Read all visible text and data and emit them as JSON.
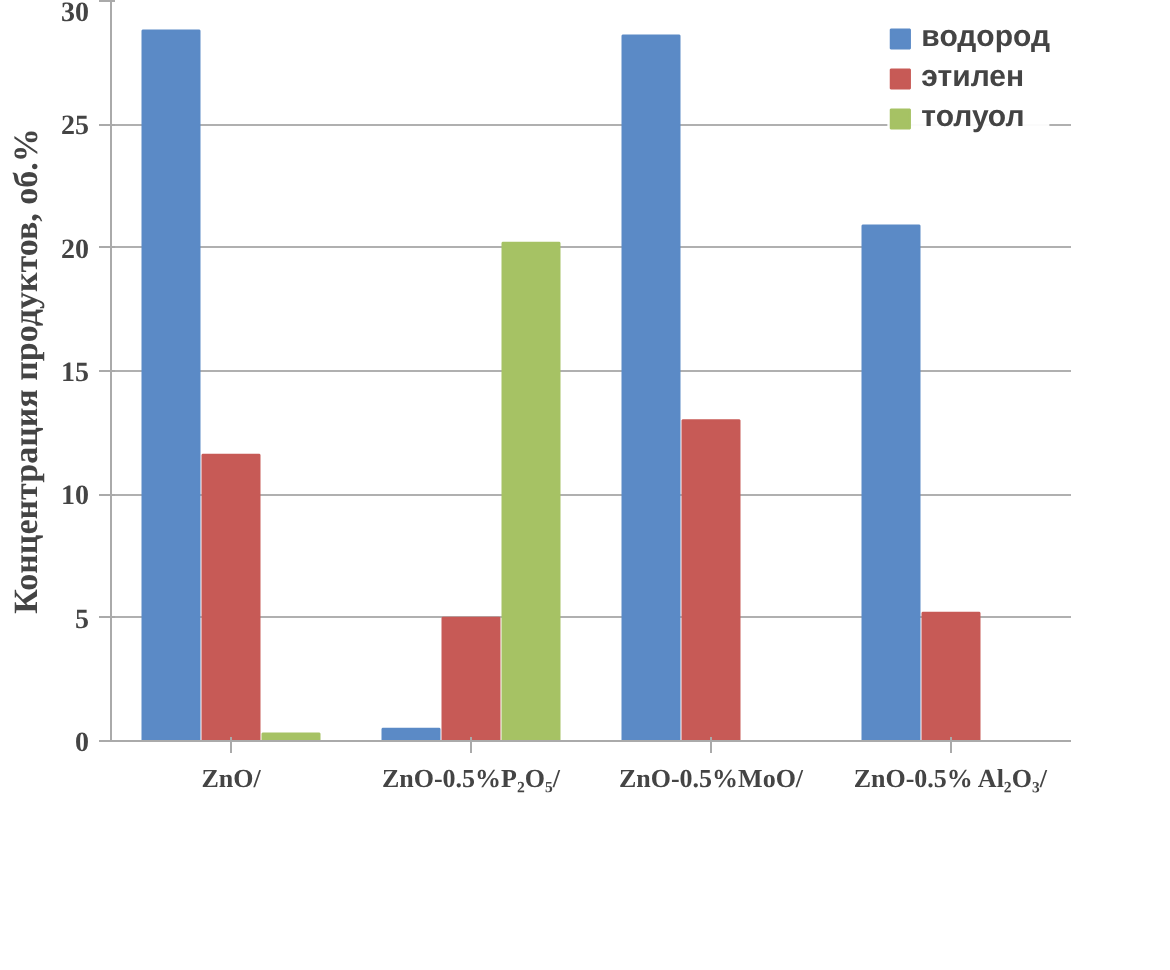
{
  "chart_data": {
    "type": "bar",
    "ylabel": "Концентрация продуктов, об.%",
    "categories": [
      "ZnO/",
      "ZnO-0.5%P₂O₅/",
      "ZnO-0.5%MoO/",
      "ZnO-0.5% Al₂O₃/"
    ],
    "series": [
      {
        "name": "водород",
        "color": "#5b8ac6",
        "values": [
          28.8,
          0.5,
          28.6,
          20.9
        ]
      },
      {
        "name": "этилен",
        "color": "#c75a56",
        "values": [
          11.6,
          5.0,
          13.0,
          5.2
        ]
      },
      {
        "name": "толуол",
        "color": "#a6c264",
        "values": [
          0.3,
          20.2,
          0,
          0
        ]
      }
    ],
    "ylim": [
      0,
      30
    ],
    "yticks": [
      0,
      5,
      10,
      15,
      20,
      25,
      30
    ],
    "grid": "y",
    "legend": "top right"
  }
}
